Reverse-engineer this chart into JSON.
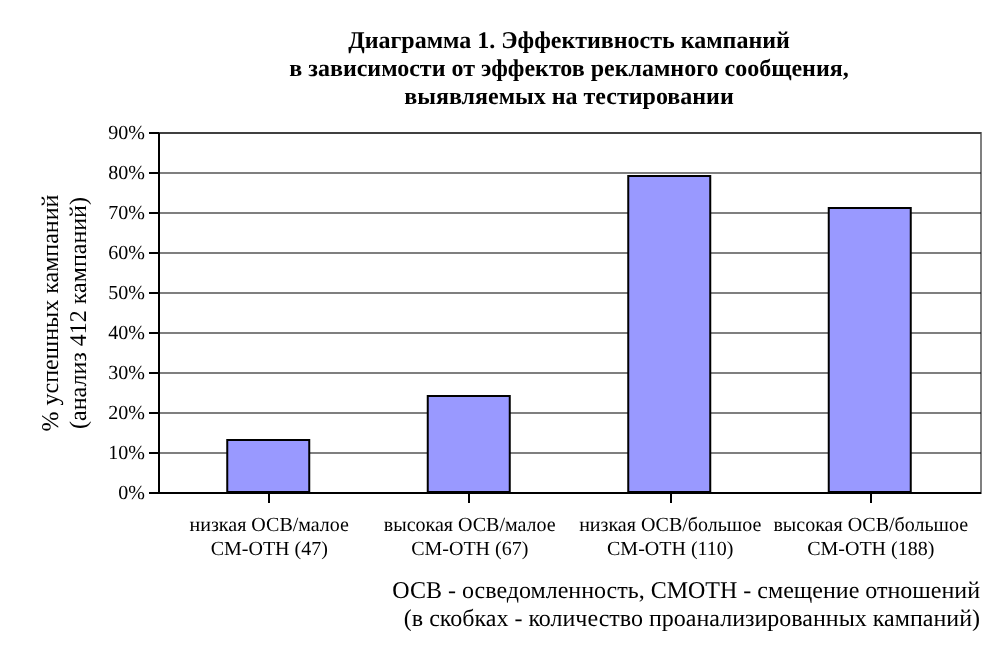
{
  "chart_data": {
    "type": "bar",
    "title": "Диаграмма 1. Эффективность кампаний\nв зависимости от эффектов рекламного сообщения,\nвыявляемых на тестировании",
    "ylabel": "% успешных кампаний\n(анализ 412 кампаний)",
    "categories": [
      "низкая ОСВ/малое\nСМ-ОТН (47)",
      "высокая ОСВ/малое\nСМ-ОТН (67)",
      "низкая ОСВ/большое\nСМ-ОТН (110)",
      "высокая ОСВ/большое\nСМ-ОТН (188)"
    ],
    "values": [
      13,
      24,
      79,
      71
    ],
    "color": "#9999ff",
    "ylim": [
      0,
      90
    ],
    "yticks": [
      {
        "value": 0,
        "label": "0%"
      },
      {
        "value": 10,
        "label": "10%"
      },
      {
        "value": 20,
        "label": "20%"
      },
      {
        "value": 30,
        "label": "30%"
      },
      {
        "value": 40,
        "label": "40%"
      },
      {
        "value": 50,
        "label": "50%"
      },
      {
        "value": 60,
        "label": "60%"
      },
      {
        "value": 70,
        "label": "70%"
      },
      {
        "value": 80,
        "label": "80%"
      },
      {
        "value": 90,
        "label": "90%"
      }
    ],
    "grid": "y",
    "annotations": [
      "ОСВ - осведомленность, СМОТН - смещение отношений\n(в скобках - количество проанализированных кампаний)"
    ]
  }
}
